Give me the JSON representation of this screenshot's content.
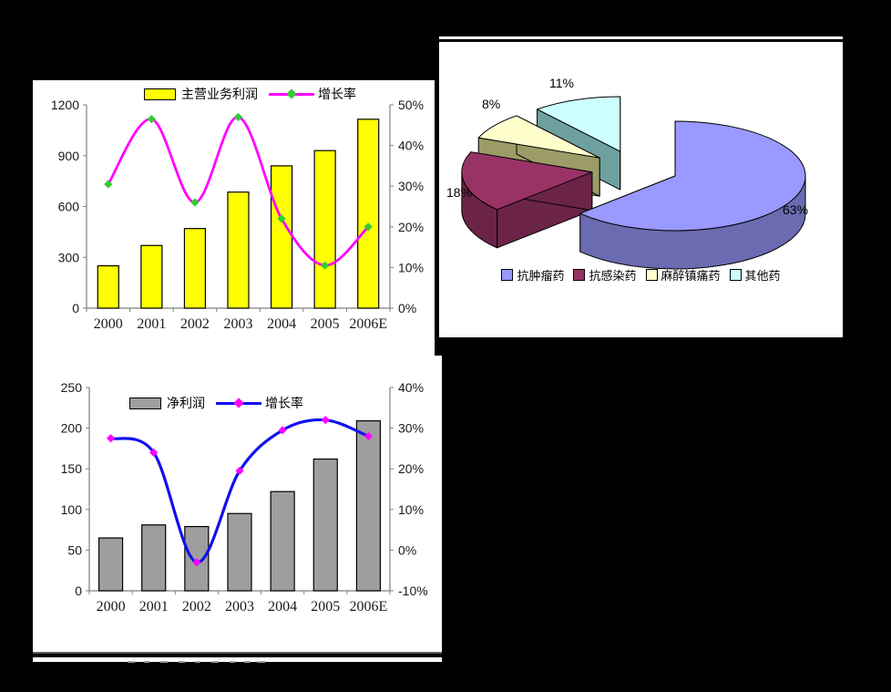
{
  "page": {
    "background": "#000000",
    "panel_background": "#FFFFFF"
  },
  "chart_data": [
    {
      "id": "main-business-profit-chart",
      "type": "combo_bar_line",
      "title": "",
      "categories": [
        "2000",
        "2001",
        "2002",
        "2003",
        "2004",
        "2005",
        "2006E"
      ],
      "axes": {
        "left": {
          "min": 0,
          "max": 1200,
          "ticks": [
            "0",
            "300",
            "600",
            "900",
            "1200"
          ]
        },
        "right": {
          "min": 0,
          "max": 50,
          "ticks": [
            "0%",
            "10%",
            "20%",
            "30%",
            "40%",
            "50%"
          ]
        }
      },
      "grid": false,
      "legend_position": "top-center",
      "series": [
        {
          "name": "主营业务利润",
          "type": "bar",
          "axis": "left",
          "color": "#FFFF00",
          "border_color": "#000000",
          "values": [
            250,
            370,
            470,
            685,
            840,
            930,
            1115
          ]
        },
        {
          "name": "增长率",
          "type": "line",
          "axis": "right",
          "color": "#FF00FF",
          "marker": "diamond",
          "marker_color": "#33CC33",
          "values": [
            30.5,
            46.5,
            26,
            47,
            22,
            10.5,
            20
          ]
        }
      ]
    },
    {
      "id": "net-profit-chart",
      "type": "combo_bar_line",
      "title": "",
      "categories": [
        "2000",
        "2001",
        "2002",
        "2003",
        "2004",
        "2005",
        "2006E"
      ],
      "axes": {
        "left": {
          "min": 0,
          "max": 250,
          "ticks": [
            "0",
            "50",
            "100",
            "150",
            "200",
            "250"
          ]
        },
        "right": {
          "min": -10,
          "max": 40,
          "ticks": [
            "-10%",
            "0%",
            "10%",
            "20%",
            "30%",
            "40%"
          ]
        }
      },
      "grid": false,
      "legend_position": "top-center",
      "series": [
        {
          "name": "净利润",
          "type": "bar",
          "axis": "left",
          "color": "#9E9E9E",
          "border_color": "#000000",
          "values": [
            65,
            81,
            79,
            95,
            122,
            162,
            209
          ]
        },
        {
          "name": "增长率",
          "type": "line",
          "axis": "right",
          "color": "#1010F0",
          "marker": "diamond",
          "marker_color": "#FF00FF",
          "values": [
            27.5,
            24,
            -3,
            19.5,
            29.5,
            32,
            28
          ]
        }
      ]
    },
    {
      "id": "drug-category-pie-chart",
      "type": "pie",
      "style": "3d-exploded",
      "title": "",
      "legend_position": "bottom-center",
      "slices": [
        {
          "label": "抗肿瘤药",
          "value": 63,
          "pct_label": "63%",
          "color": "#9999FF",
          "side_color": "#6B6BB1"
        },
        {
          "label": "抗感染药",
          "value": 18,
          "pct_label": "18%",
          "color": "#993366",
          "side_color": "#6B2447"
        },
        {
          "label": "麻醉镇痛药",
          "value": 8,
          "pct_label": "8%",
          "color": "#FFFFCC",
          "side_color": "#9C9C66"
        },
        {
          "label": "其他药",
          "value": 11,
          "pct_label": "11%",
          "color": "#CCFFFF",
          "side_color": "#6FA0A0"
        }
      ]
    }
  ]
}
